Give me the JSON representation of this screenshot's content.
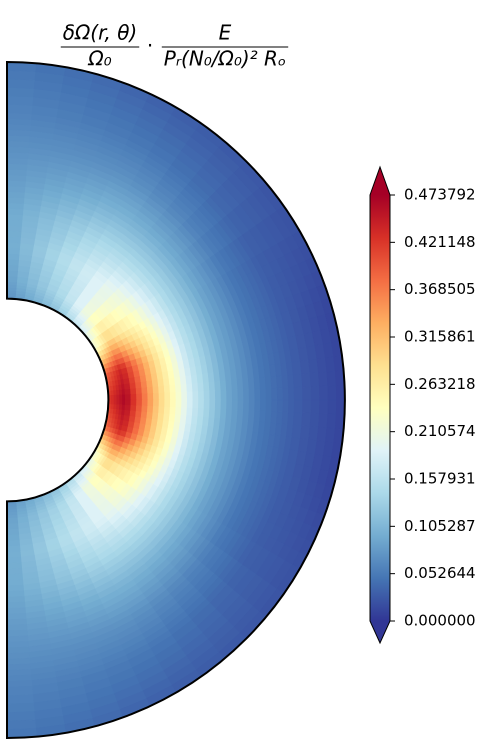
{
  "chart_data": {
    "type": "contourf-polar",
    "title_parts": [
      {
        "num": "δΩ(r, θ)",
        "den": "Ω₀"
      },
      {
        "num": "E",
        "den": "Pᵣ(N₀/Ω₀)² Rₒ"
      }
    ],
    "title_separator": "·",
    "r": [
      0.3,
      0.35,
      0.45,
      0.55,
      0.65,
      0.75,
      0.85,
      1.0
    ],
    "theta": [
      0,
      30,
      60,
      75,
      90,
      105,
      120,
      150,
      180
    ],
    "z": [
      [
        0.07,
        0.08,
        0.09,
        0.09,
        0.08,
        0.07,
        0.06,
        0.05
      ],
      [
        0.12,
        0.15,
        0.17,
        0.14,
        0.1,
        0.07,
        0.05,
        0.03
      ],
      [
        0.22,
        0.3,
        0.24,
        0.15,
        0.09,
        0.05,
        0.03,
        0.02
      ],
      [
        0.38,
        0.44,
        0.29,
        0.16,
        0.09,
        0.05,
        0.03,
        0.01
      ],
      [
        0.42,
        0.47,
        0.3,
        0.17,
        0.09,
        0.05,
        0.03,
        0.01
      ],
      [
        0.38,
        0.44,
        0.29,
        0.16,
        0.09,
        0.05,
        0.03,
        0.01
      ],
      [
        0.22,
        0.3,
        0.24,
        0.15,
        0.09,
        0.05,
        0.03,
        0.02
      ],
      [
        0.12,
        0.15,
        0.17,
        0.14,
        0.1,
        0.07,
        0.05,
        0.03
      ],
      [
        0.07,
        0.08,
        0.09,
        0.09,
        0.08,
        0.07,
        0.06,
        0.05
      ]
    ],
    "clim": [
      0,
      0.473792
    ],
    "colorbar_extend": "both",
    "colormap": [
      "#313695",
      "#4575b4",
      "#74add1",
      "#abd9e9",
      "#e0f3f8",
      "#ffffbf",
      "#fee090",
      "#fdae61",
      "#f46d43",
      "#d73027",
      "#a50026"
    ],
    "cticks": [
      {
        "value": 0,
        "label": "0.000000"
      },
      {
        "value": 0.052644,
        "label": "0.052644"
      },
      {
        "value": 0.105287,
        "label": "0.105287"
      },
      {
        "value": 0.157931,
        "label": "0.157931"
      },
      {
        "value": 0.210574,
        "label": "0.210574"
      },
      {
        "value": 0.263218,
        "label": "0.263218"
      },
      {
        "value": 0.315861,
        "label": "0.315861"
      },
      {
        "value": 0.368505,
        "label": "0.368505"
      },
      {
        "value": 0.421148,
        "label": "0.421148"
      },
      {
        "value": 0.473792,
        "label": "0.473792"
      }
    ]
  }
}
